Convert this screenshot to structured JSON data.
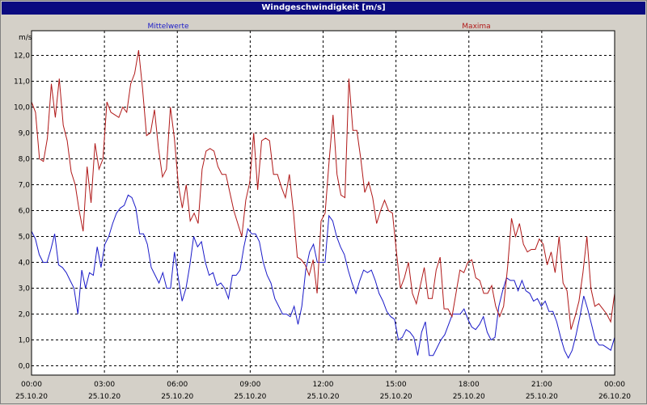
{
  "window": {
    "title": "Windgeschwindigkeit [m/s]"
  },
  "colors": {
    "series_mittelwerte": "#1a1ac8",
    "series_maxima": "#b01818",
    "titlebar": "#0a0a80",
    "plot_bg": "#ffffff",
    "frame_bg": "#d4d0c8"
  },
  "chart_data": {
    "type": "line",
    "title": "Windgeschwindigkeit [m/s]",
    "ylabel": "m/s",
    "xlabel": "",
    "ylim": [
      0,
      12.5
    ],
    "xlim": [
      0,
      24
    ],
    "grid": true,
    "legend_placement": "top",
    "y_ticks": [
      "0,0",
      "1,0",
      "2,0",
      "3,0",
      "4,0",
      "5,0",
      "6,0",
      "7,0",
      "8,0",
      "9,0",
      "10,0",
      "11,0",
      "12,0"
    ],
    "x_ticks": [
      {
        "time": "00:00",
        "date": "25.10.20"
      },
      {
        "time": "03:00",
        "date": "25.10.20"
      },
      {
        "time": "06:00",
        "date": "25.10.20"
      },
      {
        "time": "09:00",
        "date": "25.10.20"
      },
      {
        "time": "12:00",
        "date": "25.10.20"
      },
      {
        "time": "15:00",
        "date": "25.10.20"
      },
      {
        "time": "18:00",
        "date": "25.10.20"
      },
      {
        "time": "21:00",
        "date": "25.10.20"
      },
      {
        "time": "00:00",
        "date": "26.10.20"
      }
    ],
    "series": [
      {
        "name": "Mittelwerte",
        "color": "#1a1ac8",
        "values": [
          5.2,
          4.9,
          4.3,
          4.0,
          4.0,
          4.5,
          5.1,
          3.9,
          3.8,
          3.6,
          3.3,
          3.0,
          2.0,
          3.7,
          3.0,
          3.6,
          3.5,
          4.6,
          3.8,
          4.7,
          5.0,
          5.5,
          5.9,
          6.1,
          6.2,
          6.6,
          6.5,
          6.1,
          5.1,
          5.1,
          4.7,
          3.8,
          3.5,
          3.2,
          3.6,
          3.0,
          3.0,
          4.4,
          3.4,
          2.5,
          3.0,
          3.9,
          5.0,
          4.6,
          4.8,
          4.0,
          3.5,
          3.6,
          3.1,
          3.2,
          3.0,
          2.6,
          3.5,
          3.5,
          3.7,
          4.6,
          5.3,
          5.1,
          5.1,
          4.8,
          4.0,
          3.5,
          3.2,
          2.6,
          2.3,
          2.0,
          2.0,
          1.9,
          2.3,
          1.6,
          2.3,
          3.7,
          4.4,
          4.7,
          4.0,
          4.0,
          4.0,
          5.8,
          5.6,
          5.0,
          4.6,
          4.3,
          3.7,
          3.2,
          2.8,
          3.3,
          3.7,
          3.6,
          3.7,
          3.3,
          2.8,
          2.5,
          2.1,
          1.9,
          1.8,
          1.0,
          1.1,
          1.4,
          1.3,
          1.1,
          0.4,
          1.3,
          1.7,
          0.4,
          0.4,
          0.7,
          1.0,
          1.2,
          1.6,
          2.0,
          2.0,
          2.0,
          2.2,
          1.8,
          1.5,
          1.4,
          1.6,
          1.9,
          1.3,
          1.0,
          1.1,
          2.3,
          2.9,
          3.4,
          3.3,
          3.3,
          2.9,
          3.3,
          2.9,
          2.8,
          2.5,
          2.6,
          2.3,
          2.5,
          2.1,
          2.1,
          1.7,
          1.1,
          0.6,
          0.3,
          0.6,
          1.2,
          1.9,
          2.7,
          2.2,
          1.6,
          1.0,
          0.8,
          0.8,
          0.7,
          0.6,
          1.1
        ]
      },
      {
        "name": "Maxima",
        "color": "#b01818",
        "values": [
          10.2,
          9.8,
          8.0,
          7.9,
          8.8,
          10.9,
          9.6,
          11.1,
          9.3,
          8.7,
          7.5,
          7.0,
          6.0,
          5.2,
          7.7,
          6.3,
          8.6,
          7.6,
          8.0,
          10.2,
          9.8,
          9.7,
          9.6,
          10.0,
          9.8,
          10.9,
          11.3,
          12.2,
          10.7,
          8.9,
          9.0,
          9.9,
          8.4,
          7.3,
          7.6,
          10.0,
          8.8,
          7.0,
          6.1,
          7.0,
          5.6,
          5.9,
          5.5,
          7.6,
          8.3,
          8.4,
          8.3,
          7.7,
          7.4,
          7.4,
          6.7,
          6.0,
          5.5,
          5.0,
          6.4,
          7.1,
          9.0,
          6.8,
          8.7,
          8.8,
          8.7,
          7.4,
          7.4,
          6.9,
          6.5,
          7.4,
          6.0,
          4.2,
          4.1,
          3.9,
          3.5,
          4.1,
          2.8,
          5.6,
          5.9,
          7.9,
          9.7,
          7.4,
          6.6,
          6.5,
          11.1,
          9.1,
          9.1,
          8.0,
          6.7,
          7.1,
          6.5,
          5.5,
          6.0,
          6.4,
          6.0,
          5.9,
          4.4,
          3.0,
          3.4,
          4.0,
          2.8,
          2.4,
          3.1,
          3.8,
          2.6,
          2.6,
          3.7,
          4.2,
          2.2,
          2.2,
          1.9,
          2.8,
          3.7,
          3.6,
          4.0,
          4.1,
          3.4,
          3.3,
          2.8,
          2.8,
          3.1,
          2.3,
          1.9,
          2.3,
          3.8,
          5.7,
          5.0,
          5.5,
          4.7,
          4.4,
          4.5,
          4.5,
          4.9,
          4.7,
          3.9,
          4.4,
          3.6,
          5.0,
          3.2,
          2.9,
          1.4,
          1.9,
          2.5,
          3.6,
          5.0,
          3.0,
          2.3,
          2.4,
          2.2,
          2.0,
          1.7,
          2.8
        ]
      }
    ]
  }
}
